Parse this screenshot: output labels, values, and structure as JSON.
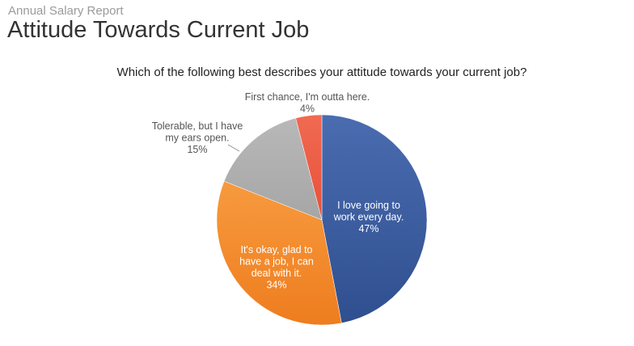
{
  "header": {
    "kicker": "Annual Salary Report",
    "title": "Attitude Towards Current Job"
  },
  "chart_data": {
    "type": "pie",
    "title": "Which of the following best describes your attitude towards your current job?",
    "slices": [
      {
        "label": "I love going to work every day.",
        "value": 47,
        "pct_label": "47%",
        "color": "#2f4f8f",
        "color_light": "#4a6cb0"
      },
      {
        "label": "It's okay, glad to have a job, I can deal with it.",
        "value": 34,
        "pct_label": "34%",
        "color": "#ee7d1f",
        "color_light": "#f79a3e"
      },
      {
        "label": "Tolerable, but I have my ears open.",
        "value": 15,
        "pct_label": "15%",
        "color": "#a6a6a6",
        "color_light": "#b8b8b8"
      },
      {
        "label": "First chance, I'm outta here.",
        "value": 4,
        "pct_label": "4%",
        "color": "#e8503a",
        "color_light": "#f06a52"
      }
    ]
  }
}
